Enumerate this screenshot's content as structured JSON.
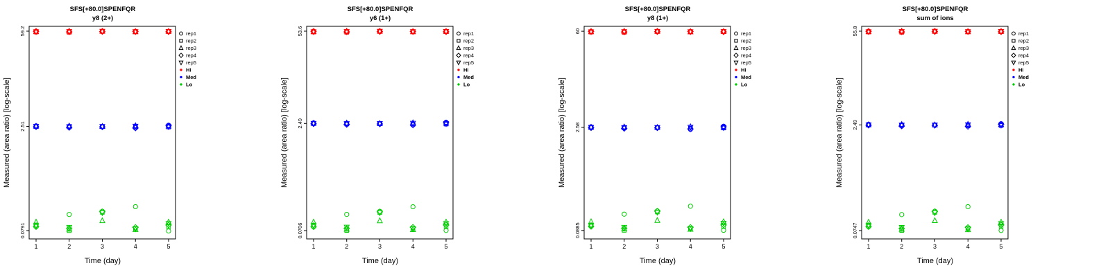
{
  "chart_data": {
    "type": "scatter",
    "yscale": "log",
    "x": [
      1,
      2,
      3,
      4,
      5
    ],
    "xlabel": "Time (day)",
    "ylabel": "Measured (area ratio) [log-scale]",
    "grid": false,
    "legend": {
      "position": "right",
      "reps": [
        {
          "label": "rep1",
          "marker": "circle"
        },
        {
          "label": "rep2",
          "marker": "square"
        },
        {
          "label": "rep3",
          "marker": "triangle-up"
        },
        {
          "label": "rep4",
          "marker": "diamond"
        },
        {
          "label": "rep5",
          "marker": "triangle-down"
        }
      ],
      "levels": [
        {
          "label": "Hi",
          "color": "#ff0000"
        },
        {
          "label": "Med",
          "color": "#0000ff"
        },
        {
          "label": "Lo",
          "color": "#00cc00"
        }
      ]
    },
    "panels": [
      {
        "title": "SFS[+80.0]SPENFQR",
        "subtitle": "y8 (2+)",
        "yticks": [
          59.2,
          2.51,
          0.0791
        ],
        "ytick_labels": [
          "59.2",
          "2.51",
          "0.0791"
        ],
        "series": {
          "Hi": [
            [
              59.2,
              58.6,
              59.4,
              58.9,
              59.0
            ],
            [
              57.6,
              57.1,
              58.6,
              57.9,
              58.3
            ],
            [
              58.3,
              59.3,
              59.1,
              58.1,
              58.9
            ],
            [
              58.9,
              57.9,
              58.3,
              58.6,
              58.0
            ],
            [
              58.1,
              58.4,
              58.9,
              58.3,
              58.6
            ]
          ],
          "Med": [
            [
              2.56,
              2.52,
              2.5,
              2.48,
              2.61
            ],
            [
              2.5,
              2.47,
              2.49,
              2.44,
              2.46
            ],
            [
              2.53,
              2.55,
              2.51,
              2.57,
              2.54
            ],
            [
              2.48,
              2.42,
              2.47,
              2.38,
              2.56
            ],
            [
              2.51,
              2.49,
              2.5,
              2.52,
              2.49
            ]
          ],
          "Lo": [
            [
              0.095,
              0.135,
              0.15,
              0.175,
              0.078
            ],
            [
              0.092,
              0.079,
              0.145,
              0.085,
              0.09
            ],
            [
              0.105,
              0.083,
              0.11,
              0.082,
              0.105
            ],
            [
              0.09,
              0.085,
              0.148,
              0.088,
              0.095
            ],
            [
              0.093,
              0.088,
              0.143,
              0.084,
              0.1
            ]
          ]
        }
      },
      {
        "title": "SFS[+80.0]SPENFQR",
        "subtitle": "y6 (1+)",
        "yticks": [
          53.6,
          2.49,
          0.0706
        ],
        "ytick_labels": [
          "53.6",
          "2.49",
          "0.0706"
        ],
        "series": {
          "Hi": [
            [
              53.6,
              53.0,
              53.8,
              53.3,
              53.4
            ],
            [
              52.1,
              51.7,
              53.0,
              52.4,
              52.8
            ],
            [
              52.8,
              53.7,
              53.5,
              52.6,
              53.3
            ],
            [
              53.3,
              52.4,
              52.8,
              53.0,
              52.5
            ],
            [
              52.6,
              52.9,
              53.3,
              52.8,
              53.0
            ]
          ],
          "Med": [
            [
              2.54,
              2.5,
              2.48,
              2.46,
              2.59
            ],
            [
              2.48,
              2.45,
              2.47,
              2.42,
              2.44
            ],
            [
              2.51,
              2.53,
              2.49,
              2.55,
              2.52
            ],
            [
              2.46,
              2.4,
              2.45,
              2.36,
              2.54
            ],
            [
              2.49,
              2.47,
              2.48,
              2.5,
              2.47
            ]
          ],
          "Lo": [
            [
              0.085,
              0.121,
              0.134,
              0.156,
              0.071
            ],
            [
              0.082,
              0.071,
              0.129,
              0.076,
              0.08
            ],
            [
              0.094,
              0.074,
              0.098,
              0.073,
              0.094
            ],
            [
              0.08,
              0.076,
              0.132,
              0.079,
              0.085
            ],
            [
              0.083,
              0.079,
              0.128,
              0.075,
              0.089
            ]
          ]
        }
      },
      {
        "title": "SFS[+80.0]SPENFQR",
        "subtitle": "y8 (1+)",
        "yticks": [
          60,
          2.58,
          0.0885
        ],
        "ytick_labels": [
          "60",
          "2.58",
          "0.0885"
        ],
        "series": {
          "Hi": [
            [
              60.0,
              59.4,
              60.2,
              59.7,
              59.8
            ],
            [
              58.4,
              57.9,
              59.4,
              58.7,
              59.1
            ],
            [
              59.1,
              60.1,
              59.9,
              58.9,
              59.7
            ],
            [
              59.7,
              58.7,
              59.1,
              59.4,
              58.8
            ],
            [
              58.9,
              59.2,
              59.7,
              59.1,
              59.4
            ]
          ],
          "Med": [
            [
              2.63,
              2.59,
              2.57,
              2.42,
              2.68
            ],
            [
              2.57,
              2.54,
              2.56,
              2.51,
              2.53
            ],
            [
              2.6,
              2.62,
              2.58,
              2.64,
              2.61
            ],
            [
              2.55,
              2.49,
              2.54,
              2.45,
              2.63
            ],
            [
              2.58,
              2.56,
              2.57,
              2.59,
              2.56
            ]
          ],
          "Lo": [
            [
              0.106,
              0.151,
              0.168,
              0.196,
              0.089
            ],
            [
              0.103,
              0.089,
              0.162,
              0.095,
              0.101
            ],
            [
              0.118,
              0.093,
              0.123,
              0.092,
              0.118
            ],
            [
              0.101,
              0.095,
              0.166,
              0.098,
              0.106
            ],
            [
              0.104,
              0.098,
              0.16,
              0.094,
              0.112
            ]
          ]
        }
      },
      {
        "title": "SFS[+80.0]SPENFQR",
        "subtitle": "sum of ions",
        "yticks": [
          55.8,
          2.49,
          0.0747
        ],
        "ytick_labels": [
          "55.8",
          "2.49",
          "0.0747"
        ],
        "series": {
          "Hi": [
            [
              55.8,
              55.2,
              56.0,
              55.5,
              55.6
            ],
            [
              54.3,
              53.8,
              55.2,
              54.6,
              55.0
            ],
            [
              55.0,
              55.9,
              55.7,
              54.8,
              55.5
            ],
            [
              55.5,
              54.6,
              55.0,
              55.2,
              54.7
            ],
            [
              54.8,
              55.1,
              55.5,
              55.0,
              55.2
            ]
          ],
          "Med": [
            [
              2.54,
              2.5,
              2.48,
              2.46,
              2.59
            ],
            [
              2.48,
              2.45,
              2.47,
              2.42,
              2.44
            ],
            [
              2.51,
              2.53,
              2.49,
              2.55,
              2.52
            ],
            [
              2.46,
              2.4,
              2.45,
              2.36,
              2.54
            ],
            [
              2.49,
              2.47,
              2.48,
              2.5,
              2.47
            ]
          ],
          "Lo": [
            [
              0.09,
              0.127,
              0.142,
              0.165,
              0.075
            ],
            [
              0.087,
              0.075,
              0.137,
              0.08,
              0.085
            ],
            [
              0.099,
              0.078,
              0.104,
              0.077,
              0.099
            ],
            [
              0.085,
              0.08,
              0.14,
              0.083,
              0.09
            ],
            [
              0.088,
              0.083,
              0.135,
              0.079,
              0.094
            ]
          ]
        }
      }
    ]
  }
}
